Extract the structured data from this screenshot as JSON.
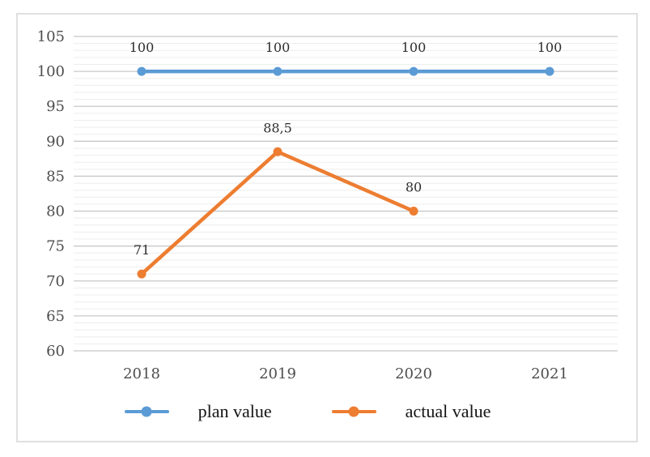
{
  "chart_data": {
    "type": "line",
    "title": "",
    "xlabel": "",
    "ylabel": "",
    "categories": [
      "2018",
      "2019",
      "2020",
      "2021"
    ],
    "series": [
      {
        "name": "plan value",
        "values": [
          100,
          100,
          100,
          100
        ],
        "labels": [
          "100",
          "100",
          "100",
          "100"
        ],
        "color": "#5B9BD5"
      },
      {
        "name": "actual value",
        "values": [
          71,
          88.5,
          80,
          null
        ],
        "labels": [
          "71",
          "88,5",
          "80",
          ""
        ],
        "color": "#ED7D31"
      }
    ],
    "ylim": [
      60,
      105
    ],
    "y_major_step": 5,
    "y_minor_step": 1,
    "y_ticks": [
      "105",
      "100",
      "95",
      "90",
      "85",
      "80",
      "75",
      "70",
      "65",
      "60"
    ],
    "grid": "major-and-minor-horizontal",
    "legend_position": "bottom"
  },
  "colors": {
    "major_gridline": "#c8c8c8",
    "minor_gridline": "#ededed",
    "axis_text": "#4d4d4d",
    "label_text": "#2e2e2e",
    "legend_text": "#141414",
    "frame_border": "#e0e0e0",
    "background": "#ffffff"
  }
}
